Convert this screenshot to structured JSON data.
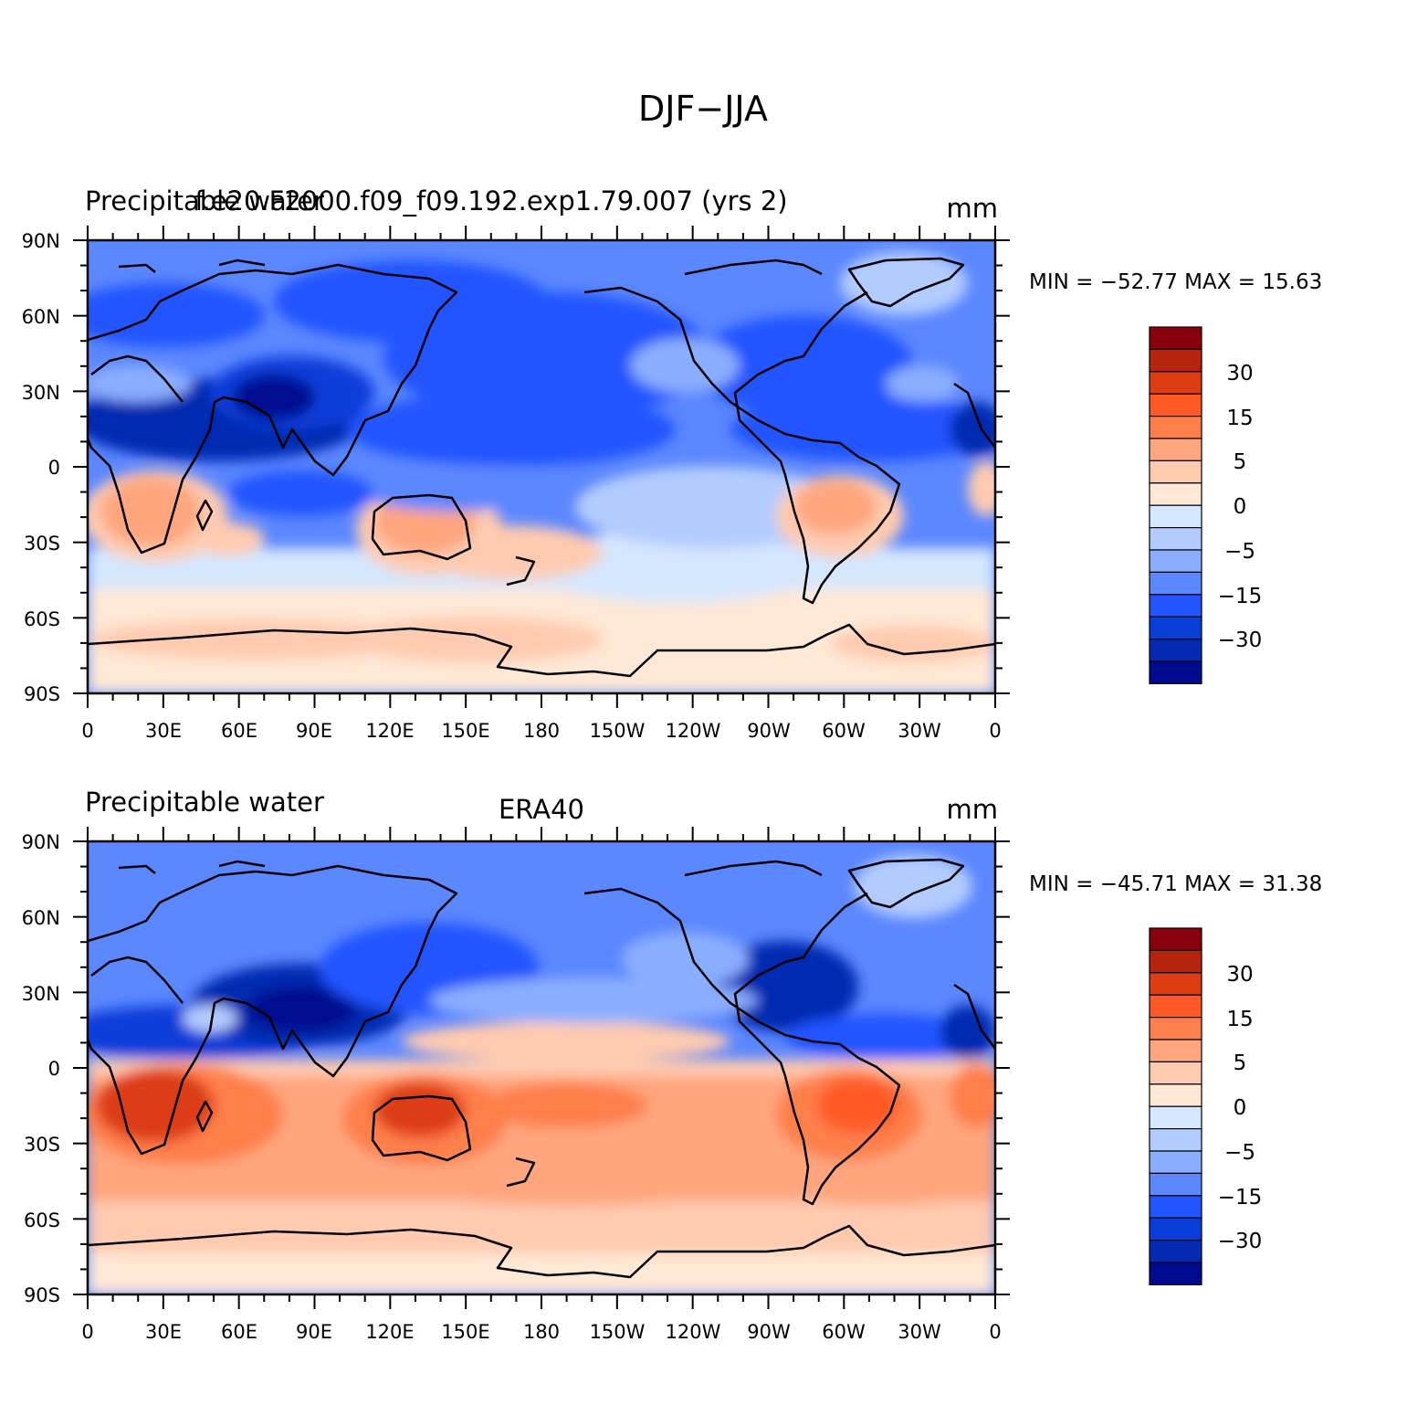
{
  "figure": {
    "title": "DJF−JJA"
  },
  "axis_labels": {
    "lat": [
      "90N",
      "60N",
      "30N",
      "0",
      "30S",
      "60S",
      "90S"
    ],
    "lon": [
      "0",
      "30E",
      "60E",
      "90E",
      "120E",
      "150E",
      "180",
      "150W",
      "120W",
      "90W",
      "60W",
      "30W",
      "0"
    ]
  },
  "colorbar": {
    "colors": [
      "#87000c",
      "#b5240c",
      "#dd3d12",
      "#ff5a26",
      "#ff7f4c",
      "#ffa67e",
      "#ffcbb0",
      "#ffe8d5",
      "#d4e7ff",
      "#b3ccff",
      "#8aaeff",
      "#5b87ff",
      "#2255ff",
      "#0a3ed9",
      "#0529b0",
      "#000a8f"
    ],
    "labels": [
      "30",
      "15",
      "5",
      "0",
      "−5",
      "−15",
      "−30"
    ]
  },
  "panels": [
    {
      "left_title": "Precipitable water",
      "center_title": "f.e20.F2000.f09_f09.192.exp1.79.007 (yrs 2)",
      "units": "mm",
      "min_max": "MIN = −52.77 MAX =   15.63",
      "min": -52.77,
      "max": 15.63
    },
    {
      "left_title": "Precipitable water",
      "center_title": "ERA40",
      "units": "mm",
      "min_max": "MIN = −45.71 MAX =   31.38",
      "min": -45.71,
      "max": 31.38
    }
  ]
}
